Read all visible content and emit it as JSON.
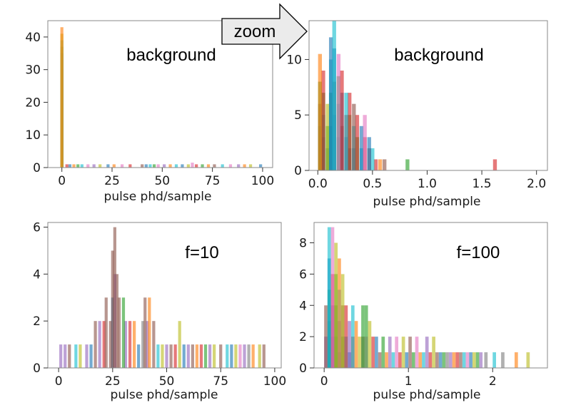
{
  "callout": {
    "label": "zoom"
  },
  "colors": [
    "#1f77b4",
    "#ff7f0e",
    "#2ca02c",
    "#d62728",
    "#9467bd",
    "#8c564b",
    "#e377c2",
    "#7f7f7f",
    "#bcbd22",
    "#17becf"
  ],
  "chart_data": [
    {
      "type": "bar",
      "annotation": "background",
      "xlabel": "pulse phd/sample",
      "ylabel": "",
      "xlim": [
        -7,
        105
      ],
      "ylim": [
        0,
        45
      ],
      "xticks": [
        0,
        25,
        50,
        75,
        100
      ],
      "yticks": [
        0,
        10,
        20,
        30,
        40
      ],
      "grid": false,
      "bin_width": 1.5,
      "bars": [
        {
          "x": 0,
          "h": 43,
          "c": 1
        },
        {
          "x": 0,
          "h": 41,
          "c": 8
        },
        {
          "x": 0,
          "h": 39,
          "c": 9
        },
        {
          "x": 0,
          "h": 37,
          "c": 2
        },
        {
          "x": 0,
          "h": 35,
          "c": 0
        },
        {
          "x": 0,
          "h": 33,
          "c": 3
        },
        {
          "x": 0,
          "h": 30,
          "c": 9
        },
        {
          "x": 0,
          "h": 27,
          "c": 5
        },
        {
          "x": 0,
          "h": 24,
          "c": 0
        },
        {
          "x": 0,
          "h": 20,
          "c": 4
        },
        {
          "x": 2.5,
          "h": 1,
          "c": 3
        },
        {
          "x": 4,
          "h": 1,
          "c": 0
        },
        {
          "x": 6,
          "h": 1,
          "c": 1
        },
        {
          "x": 8,
          "h": 1,
          "c": 2
        },
        {
          "x": 10,
          "h": 1,
          "c": 9
        },
        {
          "x": 13,
          "h": 1,
          "c": 6
        },
        {
          "x": 16,
          "h": 1,
          "c": 4
        },
        {
          "x": 19,
          "h": 1,
          "c": 8
        },
        {
          "x": 23,
          "h": 1,
          "c": 0
        },
        {
          "x": 26,
          "h": 1,
          "c": 1
        },
        {
          "x": 30,
          "h": 1,
          "c": 6
        },
        {
          "x": 34,
          "h": 1,
          "c": 3
        },
        {
          "x": 40,
          "h": 1,
          "c": 5
        },
        {
          "x": 42,
          "h": 1,
          "c": 0
        },
        {
          "x": 44,
          "h": 1,
          "c": 9
        },
        {
          "x": 46,
          "h": 1,
          "c": 2
        },
        {
          "x": 48,
          "h": 1,
          "c": 6
        },
        {
          "x": 51,
          "h": 1,
          "c": 4
        },
        {
          "x": 54,
          "h": 1,
          "c": 1
        },
        {
          "x": 57,
          "h": 1,
          "c": 9
        },
        {
          "x": 60,
          "h": 1,
          "c": 0
        },
        {
          "x": 63,
          "h": 1,
          "c": 8
        },
        {
          "x": 65,
          "h": 1.5,
          "c": 6
        },
        {
          "x": 67,
          "h": 1,
          "c": 3
        },
        {
          "x": 70,
          "h": 1,
          "c": 2
        },
        {
          "x": 73,
          "h": 1,
          "c": 1
        },
        {
          "x": 76,
          "h": 1,
          "c": 5
        },
        {
          "x": 80,
          "h": 1,
          "c": 9
        },
        {
          "x": 84,
          "h": 1,
          "c": 6
        },
        {
          "x": 88,
          "h": 1,
          "c": 4
        },
        {
          "x": 91,
          "h": 1,
          "c": 1
        },
        {
          "x": 94,
          "h": 1,
          "c": 8
        },
        {
          "x": 99,
          "h": 1,
          "c": 0
        }
      ]
    },
    {
      "type": "bar",
      "annotation": "background",
      "xlabel": "pulse phd/sample",
      "ylabel": "",
      "xlim": [
        -0.08,
        2.1
      ],
      "ylim": [
        0,
        13.5
      ],
      "xticks": [
        0.0,
        0.5,
        1.0,
        1.5,
        2.0
      ],
      "yticks": [
        0,
        5,
        10
      ],
      "xtick_labels": [
        "0.0",
        "0.5",
        "1.0",
        "1.5",
        "2.0"
      ],
      "grid": false,
      "bin_width": 0.035,
      "bars": [
        {
          "x": 0.02,
          "h": 10.5,
          "c": 1
        },
        {
          "x": 0.02,
          "h": 8,
          "c": 2
        },
        {
          "x": 0.02,
          "h": 6,
          "c": 5
        },
        {
          "x": 0.02,
          "h": 4,
          "c": 0
        },
        {
          "x": 0.05,
          "h": 9,
          "c": 3
        },
        {
          "x": 0.05,
          "h": 7,
          "c": 2
        },
        {
          "x": 0.05,
          "h": 5,
          "c": 9
        },
        {
          "x": 0.05,
          "h": 3,
          "c": 0
        },
        {
          "x": 0.09,
          "h": 6,
          "c": 8
        },
        {
          "x": 0.09,
          "h": 4,
          "c": 2
        },
        {
          "x": 0.09,
          "h": 2,
          "c": 0
        },
        {
          "x": 0.12,
          "h": 12,
          "c": 0
        },
        {
          "x": 0.12,
          "h": 10,
          "c": 9
        },
        {
          "x": 0.12,
          "h": 7,
          "c": 2
        },
        {
          "x": 0.12,
          "h": 4,
          "c": 0
        },
        {
          "x": 0.15,
          "h": 13.5,
          "c": 9
        },
        {
          "x": 0.15,
          "h": 11,
          "c": 0
        },
        {
          "x": 0.15,
          "h": 8,
          "c": 5
        },
        {
          "x": 0.15,
          "h": 5,
          "c": 0
        },
        {
          "x": 0.19,
          "h": 10.5,
          "c": 6
        },
        {
          "x": 0.19,
          "h": 8.5,
          "c": 2
        },
        {
          "x": 0.19,
          "h": 6,
          "c": 9
        },
        {
          "x": 0.19,
          "h": 3,
          "c": 0
        },
        {
          "x": 0.22,
          "h": 9,
          "c": 3
        },
        {
          "x": 0.22,
          "h": 7,
          "c": 0
        },
        {
          "x": 0.22,
          "h": 4,
          "c": 5
        },
        {
          "x": 0.26,
          "h": 7,
          "c": 9
        },
        {
          "x": 0.26,
          "h": 5,
          "c": 3
        },
        {
          "x": 0.26,
          "h": 3,
          "c": 0
        },
        {
          "x": 0.29,
          "h": 7,
          "c": 3
        },
        {
          "x": 0.29,
          "h": 5,
          "c": 2
        },
        {
          "x": 0.29,
          "h": 2,
          "c": 0
        },
        {
          "x": 0.33,
          "h": 6,
          "c": 5
        },
        {
          "x": 0.33,
          "h": 4,
          "c": 9
        },
        {
          "x": 0.33,
          "h": 2,
          "c": 0
        },
        {
          "x": 0.36,
          "h": 5,
          "c": 3
        },
        {
          "x": 0.36,
          "h": 3,
          "c": 2
        },
        {
          "x": 0.4,
          "h": 4,
          "c": 0
        },
        {
          "x": 0.4,
          "h": 2,
          "c": 9
        },
        {
          "x": 0.43,
          "h": 5,
          "c": 6
        },
        {
          "x": 0.43,
          "h": 3,
          "c": 3
        },
        {
          "x": 0.47,
          "h": 3,
          "c": 0
        },
        {
          "x": 0.47,
          "h": 2,
          "c": 5
        },
        {
          "x": 0.5,
          "h": 2,
          "c": 9
        },
        {
          "x": 0.53,
          "h": 1,
          "c": 3
        },
        {
          "x": 0.57,
          "h": 1,
          "c": 1
        },
        {
          "x": 0.61,
          "h": 1,
          "c": 5
        },
        {
          "x": 0.82,
          "h": 1,
          "c": 2
        },
        {
          "x": 1.62,
          "h": 1,
          "c": 3
        }
      ]
    },
    {
      "type": "bar",
      "annotation": "f=10",
      "xlabel": "pulse phd/sample",
      "ylabel": "",
      "xlim": [
        -5,
        103
      ],
      "ylim": [
        0,
        6.2
      ],
      "xticks": [
        0,
        25,
        50,
        75,
        100
      ],
      "yticks": [
        0,
        2,
        4,
        6
      ],
      "grid": false,
      "bin_width": 1.4,
      "bars": [
        {
          "x": 1,
          "h": 1,
          "c": 4
        },
        {
          "x": 3,
          "h": 1,
          "c": 4
        },
        {
          "x": 5,
          "h": 1,
          "c": 5
        },
        {
          "x": 8,
          "h": 1,
          "c": 9
        },
        {
          "x": 10,
          "h": 1,
          "c": 8
        },
        {
          "x": 13,
          "h": 1,
          "c": 4
        },
        {
          "x": 15,
          "h": 1,
          "c": 0
        },
        {
          "x": 17,
          "h": 2,
          "c": 5
        },
        {
          "x": 19,
          "h": 2,
          "c": 4
        },
        {
          "x": 21,
          "h": 2,
          "c": 3
        },
        {
          "x": 22,
          "h": 3,
          "c": 5
        },
        {
          "x": 24,
          "h": 2,
          "c": 5
        },
        {
          "x": 25,
          "h": 5,
          "c": 5
        },
        {
          "x": 25,
          "h": 3,
          "c": 0
        },
        {
          "x": 26,
          "h": 6,
          "c": 5
        },
        {
          "x": 26,
          "h": 4,
          "c": 4
        },
        {
          "x": 27,
          "h": 4,
          "c": 5
        },
        {
          "x": 28,
          "h": 3,
          "c": 5
        },
        {
          "x": 30,
          "h": 3,
          "c": 2
        },
        {
          "x": 31,
          "h": 2,
          "c": 4
        },
        {
          "x": 33,
          "h": 2,
          "c": 3
        },
        {
          "x": 35,
          "h": 2,
          "c": 1
        },
        {
          "x": 37,
          "h": 1,
          "c": 0
        },
        {
          "x": 39,
          "h": 2,
          "c": 7
        },
        {
          "x": 40,
          "h": 3,
          "c": 5
        },
        {
          "x": 41,
          "h": 2,
          "c": 4
        },
        {
          "x": 42,
          "h": 3,
          "c": 1
        },
        {
          "x": 44,
          "h": 2,
          "c": 5
        },
        {
          "x": 46,
          "h": 1,
          "c": 9
        },
        {
          "x": 48,
          "h": 1,
          "c": 8
        },
        {
          "x": 50,
          "h": 1,
          "c": 4
        },
        {
          "x": 52,
          "h": 1,
          "c": 5
        },
        {
          "x": 54,
          "h": 1,
          "c": 3
        },
        {
          "x": 56,
          "h": 2,
          "c": 8
        },
        {
          "x": 58,
          "h": 1,
          "c": 0
        },
        {
          "x": 60,
          "h": 1,
          "c": 4
        },
        {
          "x": 62,
          "h": 1,
          "c": 5
        },
        {
          "x": 64,
          "h": 1,
          "c": 1
        },
        {
          "x": 66,
          "h": 1,
          "c": 3
        },
        {
          "x": 68,
          "h": 1,
          "c": 2
        },
        {
          "x": 70,
          "h": 1,
          "c": 4
        },
        {
          "x": 72,
          "h": 1,
          "c": 8
        },
        {
          "x": 75,
          "h": 1,
          "c": 5
        },
        {
          "x": 78,
          "h": 1,
          "c": 9
        },
        {
          "x": 80,
          "h": 1,
          "c": 0
        },
        {
          "x": 82,
          "h": 1,
          "c": 8
        },
        {
          "x": 84,
          "h": 1,
          "c": 6
        },
        {
          "x": 86,
          "h": 1,
          "c": 4
        },
        {
          "x": 88,
          "h": 1,
          "c": 7
        },
        {
          "x": 90,
          "h": 1,
          "c": 1
        },
        {
          "x": 93,
          "h": 1,
          "c": 8
        },
        {
          "x": 95,
          "h": 1,
          "c": 5
        }
      ]
    },
    {
      "type": "bar",
      "annotation": "f=100",
      "xlabel": "pulse phd/sample",
      "ylabel": "",
      "xlim": [
        -0.12,
        2.65
      ],
      "ylim": [
        0,
        9.3
      ],
      "xticks": [
        0,
        1,
        2
      ],
      "yticks": [
        0,
        2,
        4,
        6,
        8
      ],
      "grid": false,
      "bin_width": 0.04,
      "bars": [
        {
          "x": 0.02,
          "h": 4,
          "c": 5
        },
        {
          "x": 0.02,
          "h": 2,
          "c": 4
        },
        {
          "x": 0.06,
          "h": 9,
          "c": 9
        },
        {
          "x": 0.06,
          "h": 7,
          "c": 0
        },
        {
          "x": 0.06,
          "h": 5,
          "c": 2
        },
        {
          "x": 0.06,
          "h": 3,
          "c": 5
        },
        {
          "x": 0.1,
          "h": 9,
          "c": 6
        },
        {
          "x": 0.1,
          "h": 6,
          "c": 3
        },
        {
          "x": 0.1,
          "h": 4,
          "c": 0
        },
        {
          "x": 0.1,
          "h": 2,
          "c": 9
        },
        {
          "x": 0.14,
          "h": 8,
          "c": 8
        },
        {
          "x": 0.14,
          "h": 6,
          "c": 2
        },
        {
          "x": 0.14,
          "h": 4,
          "c": 5
        },
        {
          "x": 0.14,
          "h": 2,
          "c": 0
        },
        {
          "x": 0.18,
          "h": 7,
          "c": 1
        },
        {
          "x": 0.18,
          "h": 5,
          "c": 9
        },
        {
          "x": 0.18,
          "h": 3,
          "c": 4
        },
        {
          "x": 0.18,
          "h": 1,
          "c": 0
        },
        {
          "x": 0.22,
          "h": 6,
          "c": 8
        },
        {
          "x": 0.22,
          "h": 4,
          "c": 5
        },
        {
          "x": 0.22,
          "h": 2,
          "c": 2
        },
        {
          "x": 0.26,
          "h": 4,
          "c": 3
        },
        {
          "x": 0.26,
          "h": 2,
          "c": 9
        },
        {
          "x": 0.3,
          "h": 3,
          "c": 4
        },
        {
          "x": 0.3,
          "h": 1,
          "c": 0
        },
        {
          "x": 0.34,
          "h": 4,
          "c": 9
        },
        {
          "x": 0.34,
          "h": 2,
          "c": 3
        },
        {
          "x": 0.38,
          "h": 3,
          "c": 1
        },
        {
          "x": 0.42,
          "h": 2,
          "c": 8
        },
        {
          "x": 0.46,
          "h": 4,
          "c": 2
        },
        {
          "x": 0.46,
          "h": 2,
          "c": 5
        },
        {
          "x": 0.5,
          "h": 4,
          "c": 2
        },
        {
          "x": 0.5,
          "h": 2,
          "c": 6
        },
        {
          "x": 0.54,
          "h": 3,
          "c": 8
        },
        {
          "x": 0.58,
          "h": 2,
          "c": 3
        },
        {
          "x": 0.62,
          "h": 2,
          "c": 0
        },
        {
          "x": 0.66,
          "h": 1,
          "c": 5
        },
        {
          "x": 0.7,
          "h": 2,
          "c": 2
        },
        {
          "x": 0.74,
          "h": 1,
          "c": 1
        },
        {
          "x": 0.78,
          "h": 2,
          "c": 4
        },
        {
          "x": 0.82,
          "h": 1,
          "c": 9
        },
        {
          "x": 0.86,
          "h": 2,
          "c": 6
        },
        {
          "x": 0.9,
          "h": 1,
          "c": 3
        },
        {
          "x": 0.94,
          "h": 2,
          "c": 8
        },
        {
          "x": 0.98,
          "h": 1,
          "c": 0
        },
        {
          "x": 1.02,
          "h": 2,
          "c": 5
        },
        {
          "x": 1.06,
          "h": 1,
          "c": 2
        },
        {
          "x": 1.1,
          "h": 2,
          "c": 6
        },
        {
          "x": 1.14,
          "h": 1,
          "c": 1
        },
        {
          "x": 1.18,
          "h": 1,
          "c": 9
        },
        {
          "x": 1.22,
          "h": 2,
          "c": 4
        },
        {
          "x": 1.26,
          "h": 1,
          "c": 3
        },
        {
          "x": 1.3,
          "h": 2,
          "c": 8
        },
        {
          "x": 1.34,
          "h": 1,
          "c": 5
        },
        {
          "x": 1.38,
          "h": 1,
          "c": 0
        },
        {
          "x": 1.42,
          "h": 1,
          "c": 2
        },
        {
          "x": 1.46,
          "h": 1,
          "c": 7
        },
        {
          "x": 1.5,
          "h": 1,
          "c": 4
        },
        {
          "x": 1.54,
          "h": 1,
          "c": 1
        },
        {
          "x": 1.58,
          "h": 1,
          "c": 3
        },
        {
          "x": 1.62,
          "h": 1,
          "c": 5
        },
        {
          "x": 1.66,
          "h": 1,
          "c": 9
        },
        {
          "x": 1.7,
          "h": 1,
          "c": 6
        },
        {
          "x": 1.74,
          "h": 1,
          "c": 0
        },
        {
          "x": 1.78,
          "h": 1,
          "c": 8
        },
        {
          "x": 1.82,
          "h": 1,
          "c": 2
        },
        {
          "x": 1.86,
          "h": 1,
          "c": 4
        },
        {
          "x": 1.92,
          "h": 1,
          "c": 7
        },
        {
          "x": 2.02,
          "h": 1,
          "c": 9
        },
        {
          "x": 2.12,
          "h": 1,
          "c": 7
        },
        {
          "x": 2.28,
          "h": 1,
          "c": 1
        },
        {
          "x": 2.42,
          "h": 1,
          "c": 8
        }
      ]
    }
  ]
}
